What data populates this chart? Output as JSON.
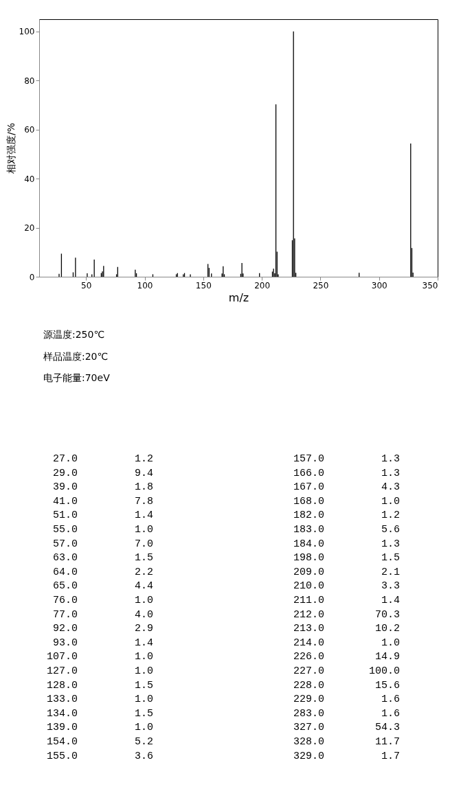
{
  "chart_data": [
    {
      "type": "bar",
      "xlabel": "m/z",
      "ylabel": "相对强度/%",
      "x": [
        27,
        29,
        39,
        41,
        51,
        55,
        57,
        63,
        64,
        65,
        76,
        77,
        92,
        93,
        107,
        127,
        128,
        133,
        134,
        139,
        154,
        155,
        157,
        166,
        167,
        168,
        182,
        183,
        184,
        198,
        209,
        210,
        211,
        212,
        213,
        214,
        226,
        227,
        228,
        229,
        283,
        327,
        328,
        329
      ],
      "values": [
        1.2,
        9.4,
        1.8,
        7.8,
        1.4,
        1.0,
        7.0,
        1.5,
        2.2,
        4.4,
        1.0,
        4.0,
        2.9,
        1.4,
        1.0,
        1.0,
        1.5,
        1.0,
        1.5,
        1.0,
        5.2,
        3.6,
        1.3,
        1.3,
        4.3,
        1.0,
        1.2,
        5.6,
        1.3,
        1.5,
        2.1,
        3.3,
        1.4,
        70.3,
        10.2,
        1.0,
        14.9,
        100.0,
        15.6,
        1.6,
        1.6,
        54.3,
        11.7,
        1.7
      ],
      "color": "#000000",
      "xlim": [
        10,
        350
      ],
      "xticks": [
        50,
        100,
        150,
        200,
        250,
        300,
        350
      ],
      "ylim": [
        0,
        105
      ],
      "yticks": [
        0,
        20,
        40,
        60,
        80,
        100
      ],
      "grid": false,
      "annotations": [
        "源温度:250℃",
        "样品温度:20℃",
        "电子能量:70eV"
      ]
    },
    {
      "type": "other",
      "categories": [
        "27.0",
        "29.0",
        "39.0",
        "41.0",
        "51.0",
        "55.0",
        "57.0",
        "63.0",
        "64.0",
        "65.0",
        "76.0",
        "77.0",
        "92.0",
        "93.0",
        "107.0",
        "127.0",
        "128.0",
        "133.0",
        "134.0",
        "139.0",
        "154.0",
        "155.0",
        "157.0",
        "166.0",
        "167.0",
        "168.0",
        "182.0",
        "183.0",
        "184.0",
        "198.0",
        "209.0",
        "210.0",
        "211.0",
        "212.0",
        "213.0",
        "214.0",
        "226.0",
        "227.0",
        "228.0",
        "229.0",
        "283.0",
        "327.0",
        "328.0",
        "329.0"
      ],
      "annotations": [
        "1.2",
        "9.4",
        "1.8",
        "7.8",
        "1.4",
        "1.0",
        "7.0",
        "1.5",
        "2.2",
        "4.4",
        "1.0",
        "4.0",
        "2.9",
        "1.4",
        "1.0",
        "1.0",
        "1.5",
        "1.0",
        "1.5",
        "1.0",
        "5.2",
        "3.6",
        "1.3",
        "1.3",
        "4.3",
        "1.0",
        "1.2",
        "5.6",
        "1.3",
        "1.5",
        "2.1",
        "3.3",
        "1.4",
        "70.3",
        "10.2",
        "1.0",
        "14.9",
        "100.0",
        "15.6",
        "1.6",
        "1.6",
        "54.3",
        "11.7",
        "1.7"
      ]
    }
  ]
}
